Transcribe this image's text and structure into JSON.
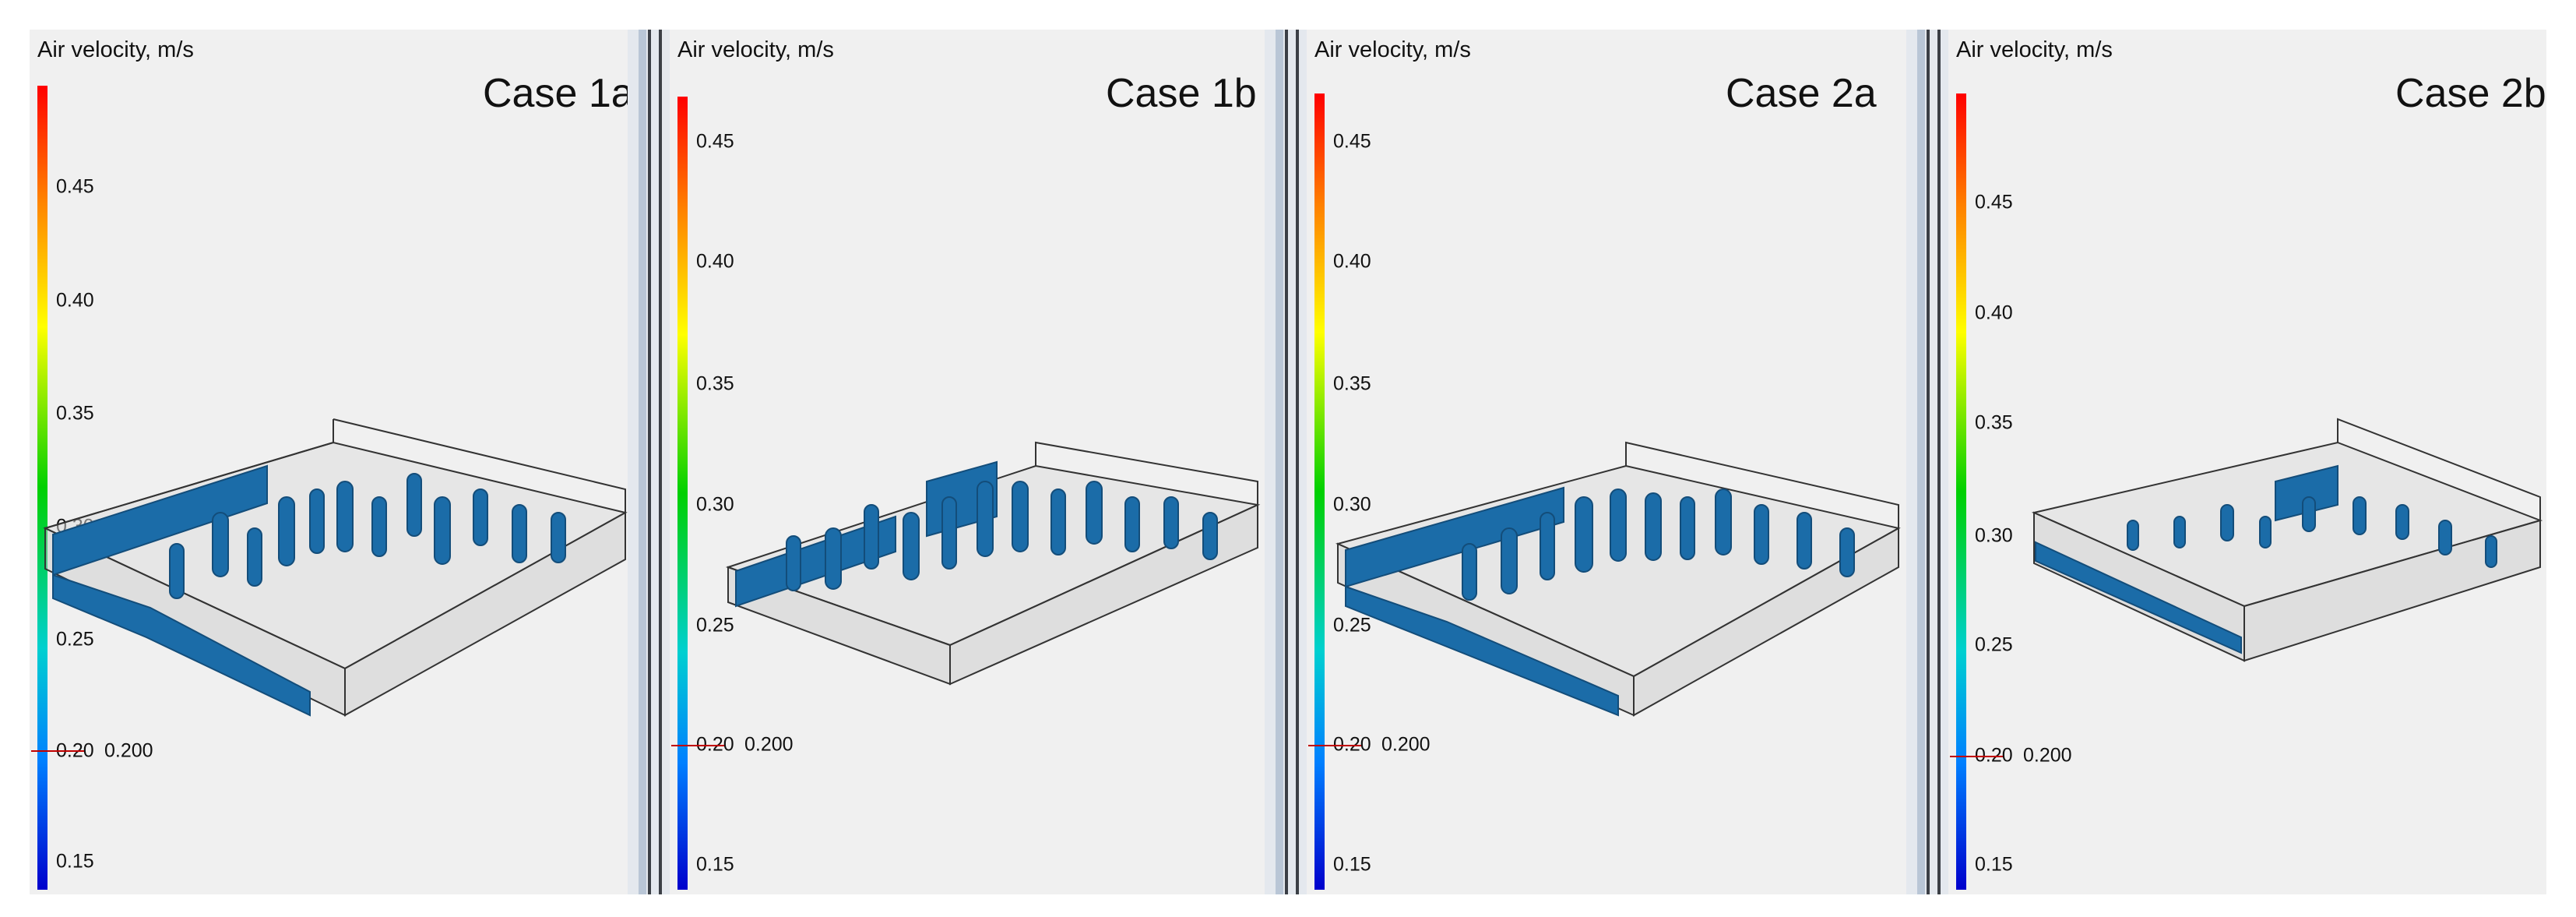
{
  "legend_title": "Air velocity, m/s",
  "marker_value": "0.200",
  "panels": [
    {
      "case_label": "Case 1a",
      "ticks": [
        "0.45",
        "0.40",
        "0.35",
        "0.30",
        "0.25",
        "0.20",
        "0.15"
      ]
    },
    {
      "case_label": "Case 1b",
      "ticks": [
        "0.45",
        "0.40",
        "0.35",
        "0.30",
        "0.25",
        "0.20",
        "0.15"
      ]
    },
    {
      "case_label": "Case 2a",
      "ticks": [
        "0.45",
        "0.40",
        "0.35",
        "0.30",
        "0.25",
        "0.20",
        "0.15"
      ]
    },
    {
      "case_label": "Case 2b",
      "ticks": [
        "0.45",
        "0.40",
        "0.35",
        "0.30",
        "0.25",
        "0.20",
        "0.15"
      ]
    }
  ],
  "colors": {
    "isosurface": "#1b6ca8",
    "isosurface_dark": "#134d7a",
    "background": "#f0f0f0",
    "marker": "#c00000",
    "scale_top": "#ff0000",
    "scale_bottom": "#0000cc"
  }
}
